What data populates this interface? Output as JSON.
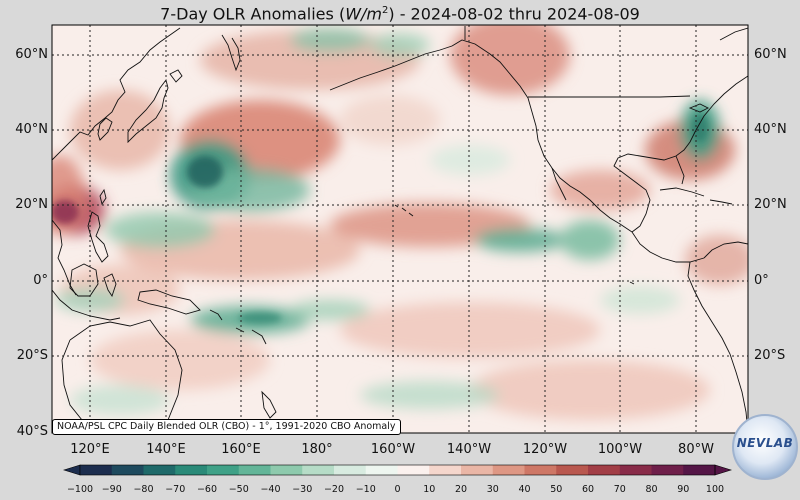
{
  "title": {
    "prefix": "7-Day OLR Anomalies (",
    "unit_base": "W/m",
    "unit_exp": "2",
    "suffix": ") - 2024-08-02 thru 2024-08-09"
  },
  "lat_labels": [
    "60°N",
    "40°N",
    "20°N",
    "0°",
    "20°S",
    "40°S"
  ],
  "lon_labels": [
    "120°E",
    "140°E",
    "160°E",
    "180°",
    "160°W",
    "140°W",
    "120°W",
    "100°W",
    "80°W"
  ],
  "attribution": "NOAA/PSL CPC Daily Blended OLR (CBO) - 1°, 1991-2020 CBO Anomaly",
  "colorbar": {
    "ticks": [
      "−100",
      "−90",
      "−80",
      "−70",
      "−60",
      "−50",
      "−40",
      "−30",
      "−20",
      "−10",
      "0",
      "10",
      "20",
      "30",
      "40",
      "50",
      "60",
      "70",
      "80",
      "90",
      "100"
    ],
    "colors": [
      "#1c2d4e",
      "#1e4a5e",
      "#1f6a6a",
      "#2a8a78",
      "#3fa187",
      "#63b598",
      "#8ecaad",
      "#b6dcc7",
      "#d8ebe0",
      "#eef6f0",
      "#fbf1ee",
      "#f5d6cc",
      "#eab6a6",
      "#de9784",
      "#ce7766",
      "#b9584f",
      "#a23e46",
      "#892c49",
      "#6f1f4a",
      "#541546"
    ]
  },
  "logo_text": "NEVLAB",
  "colors": {
    "ocean": "#f9eeea",
    "neg_strong": "#2a7c6d",
    "pos_strong": "#c86a5f"
  }
}
